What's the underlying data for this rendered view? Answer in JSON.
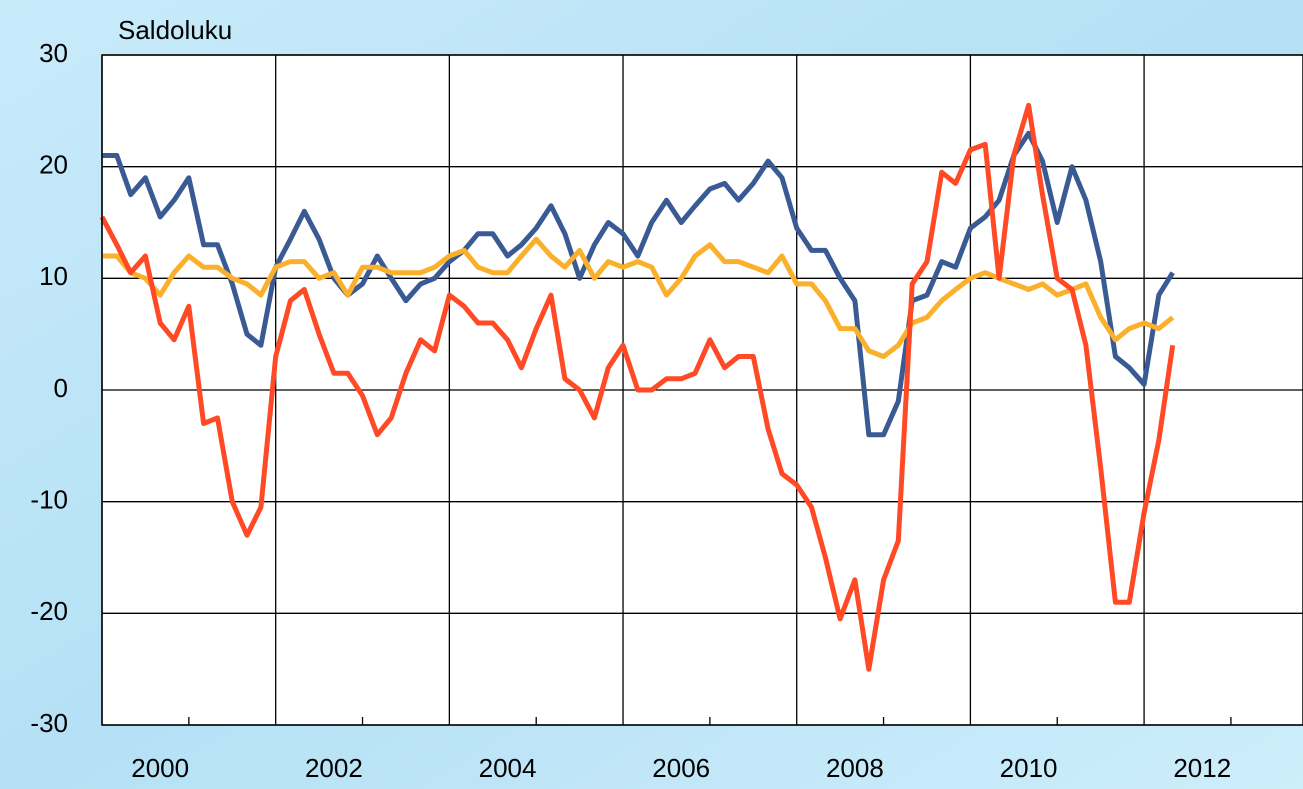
{
  "chart_data": {
    "type": "line",
    "title": "Saldoluku",
    "x": [
      2000,
      2000.17,
      2000.33,
      2000.5,
      2000.67,
      2000.83,
      2001,
      2001.17,
      2001.33,
      2001.5,
      2001.67,
      2001.83,
      2002,
      2002.17,
      2002.33,
      2002.5,
      2002.67,
      2002.83,
      2003,
      2003.17,
      2003.33,
      2003.5,
      2003.67,
      2003.83,
      2004,
      2004.17,
      2004.33,
      2004.5,
      2004.67,
      2004.83,
      2005,
      2005.17,
      2005.33,
      2005.5,
      2005.67,
      2005.83,
      2006,
      2006.17,
      2006.33,
      2006.5,
      2006.67,
      2006.83,
      2007,
      2007.17,
      2007.33,
      2007.5,
      2007.67,
      2007.83,
      2008,
      2008.17,
      2008.33,
      2008.5,
      2008.67,
      2008.83,
      2009,
      2009.17,
      2009.33,
      2009.5,
      2009.67,
      2009.83,
      2010,
      2010.17,
      2010.33,
      2010.5,
      2010.67,
      2010.83,
      2011,
      2011.17,
      2011.33,
      2011.5,
      2011.67,
      2011.83,
      2012,
      2012.17,
      2012.33
    ],
    "series": [
      {
        "color": "#3a5a94",
        "values": [
          21,
          21,
          17.5,
          19,
          15.5,
          17,
          19,
          13,
          13,
          9.5,
          5,
          4,
          11,
          13.5,
          16,
          13.5,
          10,
          8.5,
          9.5,
          12,
          10,
          8,
          9.5,
          10,
          11.5,
          12.5,
          14,
          14,
          12,
          13,
          14.5,
          16.5,
          14,
          10,
          13,
          15,
          14,
          12,
          15,
          17,
          15,
          16.5,
          18,
          18.5,
          17,
          18.5,
          20.5,
          19,
          14.5,
          12.5,
          12.5,
          10,
          8,
          -4,
          -4,
          -1,
          8,
          8.5,
          11.5,
          11,
          14.5,
          15.5,
          17,
          21,
          23,
          20.5,
          15,
          20,
          17,
          11.5,
          3,
          2,
          0.5,
          8.5,
          10.5
        ]
      },
      {
        "color": "#fbb02b",
        "values": [
          12,
          12,
          10.5,
          10,
          8.5,
          10.5,
          12,
          11,
          11,
          10,
          9.5,
          8.5,
          11,
          11.5,
          11.5,
          10,
          10.5,
          8.5,
          11,
          11,
          10.5,
          10.5,
          10.5,
          11,
          12,
          12.5,
          11,
          10.5,
          10.5,
          12,
          13.5,
          12,
          11,
          12.5,
          10,
          11.5,
          11,
          11.5,
          11,
          8.5,
          10,
          12,
          13,
          11.5,
          11.5,
          11,
          10.5,
          12,
          9.5,
          9.5,
          8,
          5.5,
          5.5,
          3.5,
          3,
          4,
          6,
          6.5,
          8,
          9,
          10,
          10.5,
          10,
          9.5,
          9,
          9.5,
          8.5,
          9,
          9.5,
          6.5,
          4.5,
          5.5,
          6,
          5.5,
          6.5
        ]
      },
      {
        "color": "#ff4a25",
        "values": [
          15.5,
          13,
          10.5,
          12,
          6,
          4.5,
          7.5,
          -3,
          -2.5,
          -10,
          -13,
          -10.5,
          3,
          8,
          9,
          5,
          1.5,
          1.5,
          -0.5,
          -4,
          -2.5,
          1.5,
          4.5,
          3.5,
          8.5,
          7.5,
          6,
          6,
          4.5,
          2,
          5.5,
          8.5,
          1,
          0,
          -2.5,
          2,
          4,
          0,
          0,
          1,
          1,
          1.5,
          4.5,
          2,
          3,
          3,
          -3.5,
          -7.5,
          -8.5,
          -10.5,
          -15,
          -20.5,
          -17,
          -25,
          -17,
          -13.5,
          9.5,
          11.5,
          19.5,
          18.5,
          21.5,
          22,
          10,
          21,
          25.5,
          17.5,
          10,
          9,
          4,
          -7,
          -19,
          -19,
          -11,
          -4.5,
          4
        ]
      }
    ],
    "xlim": [
      2000,
      2013.83
    ],
    "xticks": [
      2000,
      2002,
      2004,
      2006,
      2008,
      2010,
      2012
    ],
    "xminorticks": [
      2001,
      2003,
      2005,
      2007,
      2009,
      2011,
      2013
    ],
    "ylim": [
      -30,
      30
    ],
    "yticks": [
      -30,
      -20,
      -10,
      0,
      10,
      20,
      30
    ],
    "grid": true
  }
}
